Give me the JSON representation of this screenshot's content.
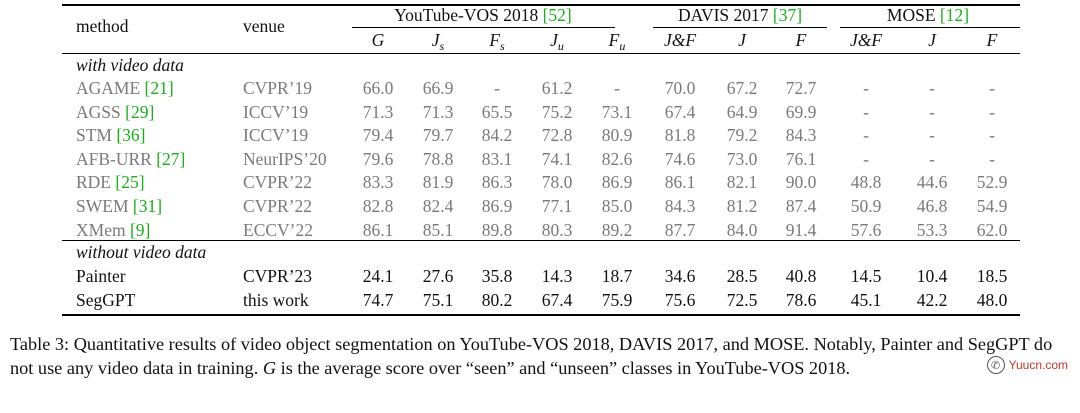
{
  "table": {
    "header_method": "method",
    "header_venue": "venue",
    "groups": [
      {
        "name": "YouTube-VOS 2018",
        "ref": "[52]"
      },
      {
        "name": "DAVIS 2017",
        "ref": "[37]"
      },
      {
        "name": "MOSE",
        "ref": "[12]"
      }
    ],
    "metrics": [
      {
        "base": "G",
        "sub": ""
      },
      {
        "base": "J",
        "sub": "s"
      },
      {
        "base": "F",
        "sub": "s"
      },
      {
        "base": "J",
        "sub": "u"
      },
      {
        "base": "F",
        "sub": "u"
      },
      {
        "base": "J&F",
        "sub": ""
      },
      {
        "base": "J",
        "sub": ""
      },
      {
        "base": "F",
        "sub": ""
      },
      {
        "base": "J&F",
        "sub": ""
      },
      {
        "base": "J",
        "sub": ""
      },
      {
        "base": "F",
        "sub": ""
      }
    ],
    "section_with": "with video data",
    "section_without": "without video data",
    "rows_with": [
      {
        "method": "AGAME",
        "ref": "[21]",
        "venue": "CVPR’19",
        "values": [
          "66.0",
          "66.9",
          "-",
          "61.2",
          "-",
          "70.0",
          "67.2",
          "72.7",
          "-",
          "-",
          "-"
        ]
      },
      {
        "method": "AGSS",
        "ref": "[29]",
        "venue": "ICCV’19",
        "values": [
          "71.3",
          "71.3",
          "65.5",
          "75.2",
          "73.1",
          "67.4",
          "64.9",
          "69.9",
          "-",
          "-",
          "-"
        ]
      },
      {
        "method": "STM",
        "ref": "[36]",
        "venue": "ICCV’19",
        "values": [
          "79.4",
          "79.7",
          "84.2",
          "72.8",
          "80.9",
          "81.8",
          "79.2",
          "84.3",
          "-",
          "-",
          "-"
        ]
      },
      {
        "method": "AFB-URR",
        "ref": "[27]",
        "venue": "NeurIPS’20",
        "values": [
          "79.6",
          "78.8",
          "83.1",
          "74.1",
          "82.6",
          "74.6",
          "73.0",
          "76.1",
          "-",
          "-",
          "-"
        ]
      },
      {
        "method": "RDE",
        "ref": "[25]",
        "venue": "CVPR’22",
        "values": [
          "83.3",
          "81.9",
          "86.3",
          "78.0",
          "86.9",
          "86.1",
          "82.1",
          "90.0",
          "48.8",
          "44.6",
          "52.9"
        ]
      },
      {
        "method": "SWEM",
        "ref": "[31]",
        "venue": "CVPR’22",
        "values": [
          "82.8",
          "82.4",
          "86.9",
          "77.1",
          "85.0",
          "84.3",
          "81.2",
          "87.4",
          "50.9",
          "46.8",
          "54.9"
        ]
      },
      {
        "method": "XMem",
        "ref": "[9]",
        "venue": "ECCV’22",
        "values": [
          "86.1",
          "85.1",
          "89.8",
          "80.3",
          "89.2",
          "87.7",
          "84.0",
          "91.4",
          "57.6",
          "53.3",
          "62.0"
        ]
      }
    ],
    "rows_without": [
      {
        "method": "Painter",
        "ref": "",
        "venue": "CVPR’23",
        "values": [
          "24.1",
          "27.6",
          "35.8",
          "14.3",
          "18.7",
          "34.6",
          "28.5",
          "40.8",
          "14.5",
          "10.4",
          "18.5"
        ]
      },
      {
        "method": "SegGPT",
        "ref": "",
        "venue": "this work",
        "values": [
          "74.7",
          "75.1",
          "80.2",
          "67.4",
          "75.9",
          "75.6",
          "72.5",
          "78.6",
          "45.1",
          "42.2",
          "48.0"
        ]
      }
    ]
  },
  "caption": {
    "label": "Table 3:",
    "text_1": " Quantitative results of video object segmentation on YouTube-VOS 2018, DAVIS 2017, and MOSE. Notably, Painter and SegGPT do not use any video data in training. ",
    "g_symbol": "G",
    "text_2": " is the average score over “seen” and “unseen” classes in YouTube-VOS 2018."
  },
  "watermark": {
    "icon_name": "wechat-icon",
    "text": "Yuucn.com"
  },
  "colors": {
    "reference_green": "#19b019",
    "with_data_gray": "#7a7a7a"
  }
}
